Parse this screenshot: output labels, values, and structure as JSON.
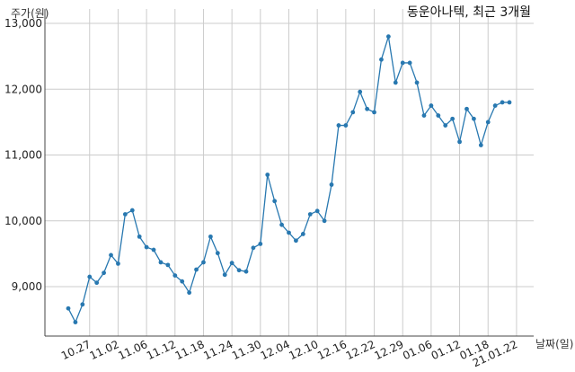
{
  "chart_data": {
    "type": "line",
    "title": "동운아나텍, 최근 3개월",
    "xlabel": "날짜(일)",
    "ylabel": "주가(원)",
    "ylim": [
      8250,
      13000
    ],
    "yticks": [
      9000,
      10000,
      11000,
      12000,
      13000
    ],
    "ytick_labels": [
      "9,000",
      "10,000",
      "11,000",
      "12,000",
      "13,000"
    ],
    "xtick_labels": [
      "10.27",
      "11.02",
      "11.06",
      "11.12",
      "11.18",
      "11.24",
      "11.30",
      "12.04",
      "12.10",
      "12.16",
      "12.22",
      "12.29",
      "01.06",
      "01.12",
      "01.18",
      "21.01.22"
    ],
    "xtick_indices": [
      3,
      7,
      11,
      15,
      19,
      23,
      27,
      31,
      35,
      39,
      43,
      47,
      51,
      55,
      59,
      63
    ],
    "grid": true,
    "line_color": "#2878b0",
    "series": [
      {
        "values": [
          8670,
          8460,
          8730,
          9150,
          9060,
          9210,
          9480,
          9350,
          10100,
          10160,
          9760,
          9600,
          9560,
          9370,
          9330,
          9170,
          9080,
          8910,
          9260,
          9370,
          9760,
          9510,
          9180,
          9360,
          9250,
          9230,
          9590,
          9650,
          10700,
          10300,
          9940,
          9820,
          9700,
          9800,
          10100,
          10150,
          10000,
          10550,
          11450,
          11450,
          11650,
          11960,
          11700,
          11650,
          12450,
          12800,
          12100,
          12400,
          12400,
          12100,
          11600,
          11750,
          11600,
          11450,
          11550,
          11200,
          11700,
          11550,
          11150,
          11500,
          11750,
          11800,
          11800
        ]
      }
    ]
  }
}
